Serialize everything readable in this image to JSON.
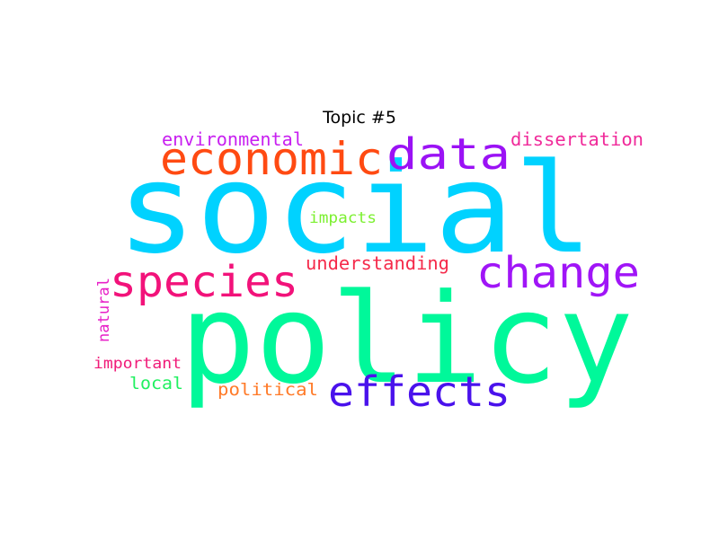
{
  "title": "Topic #5",
  "words": [
    {
      "text": "social",
      "color": "#00d2ff"
    },
    {
      "text": "policy",
      "color": "#00f89a"
    },
    {
      "text": "economic",
      "color": "#ff4a12"
    },
    {
      "text": "data",
      "color": "#9b12f5"
    },
    {
      "text": "species",
      "color": "#f2127a"
    },
    {
      "text": "change",
      "color": "#a015f7"
    },
    {
      "text": "effects",
      "color": "#4a12ec"
    },
    {
      "text": "environmental",
      "color": "#c820f0"
    },
    {
      "text": "dissertation",
      "color": "#f02a9a"
    },
    {
      "text": "impacts",
      "color": "#7cf030"
    },
    {
      "text": "understanding",
      "color": "#f52a4a"
    },
    {
      "text": "natural",
      "color": "#e820c8"
    },
    {
      "text": "important",
      "color": "#f01a78"
    },
    {
      "text": "local",
      "color": "#20f060"
    },
    {
      "text": "political",
      "color": "#ff7a28"
    }
  ]
}
